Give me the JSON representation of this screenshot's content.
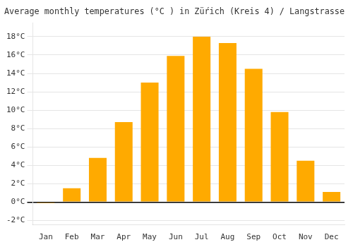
{
  "chart_data": {
    "type": "bar",
    "title": "Average monthly temperatures (°C ) in Züŕich (Kreis 4) / Langstrasse",
    "categories": [
      "Jan",
      "Feb",
      "Mar",
      "Apr",
      "May",
      "Jun",
      "Jul",
      "Aug",
      "Sep",
      "Oct",
      "Nov",
      "Dec"
    ],
    "values": [
      -0.1,
      1.5,
      4.8,
      8.7,
      13.0,
      15.9,
      18.0,
      17.3,
      14.5,
      9.8,
      4.5,
      1.1
    ],
    "color": "#FFAA00",
    "ylim": [
      -2.5,
      19.5
    ],
    "yticks": [
      {
        "value": -2,
        "label": "-2°C"
      },
      {
        "value": 0,
        "label": "0°C"
      },
      {
        "value": 2,
        "label": "2°C"
      },
      {
        "value": 4,
        "label": "4°C"
      },
      {
        "value": 6,
        "label": "6°C"
      },
      {
        "value": 8,
        "label": "8°C"
      },
      {
        "value": 10,
        "label": "10°C"
      },
      {
        "value": 12,
        "label": "12°C"
      },
      {
        "value": 14,
        "label": "14°C"
      },
      {
        "value": 16,
        "label": "16°C"
      },
      {
        "value": 18,
        "label": "18°C"
      }
    ],
    "grid": true
  }
}
